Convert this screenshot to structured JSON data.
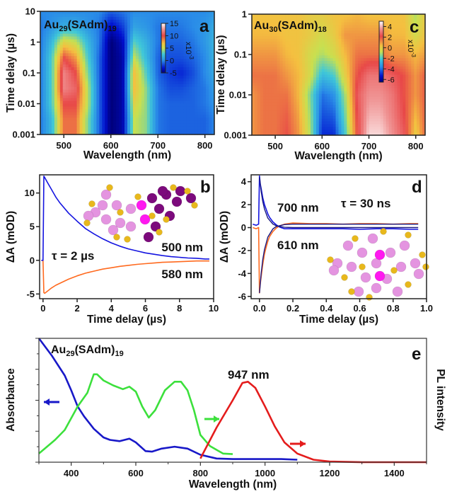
{
  "colors": {
    "blue": "#1414e0",
    "orange": "#ff6a1f",
    "red_text": "#e01f1f",
    "fit": "#1a1a80",
    "abs_blue": "#1818c8",
    "green": "#3ce03c",
    "pl_red": "#e41c1c"
  },
  "chart_data": [
    {
      "panel": "a",
      "type": "heatmap",
      "formula": [
        {
          "t": "Au"
        },
        {
          "t": "29",
          "sub": true
        },
        {
          "t": "(SAdm)"
        },
        {
          "t": "19",
          "sub": true
        }
      ],
      "xlabel": "Wavelength (nm)",
      "ylabel": "Time delay (µs)",
      "xlim": [
        450,
        820
      ],
      "ylim": [
        0.001,
        10
      ],
      "yscale": "log",
      "xticks": [
        500,
        600,
        700,
        800
      ],
      "xtick_labels": [
        "500",
        "600",
        "700",
        "800"
      ],
      "yticks": [
        10,
        1,
        0.1,
        0.01,
        0.001
      ],
      "ytick_labels": [
        "10",
        "1",
        "0.1",
        "0.01",
        "0.001"
      ],
      "colorbar": {
        "ticks": [
          15,
          10,
          5,
          0,
          -5
        ],
        "tick_labels": [
          "15",
          "10",
          "5",
          "0",
          "-5"
        ],
        "range": [
          -5,
          15
        ],
        "unit": "x10",
        "unit_exp": "-3"
      },
      "wavelengths": [
        450,
        475,
        500,
        525,
        550,
        575,
        600,
        625,
        650,
        675,
        700,
        725,
        750,
        775,
        800,
        825
      ],
      "times": [
        0.001,
        0.003,
        0.01,
        0.03,
        0.1,
        0.3,
        1,
        3,
        10
      ],
      "values": [
        [
          -0.5,
          2,
          9,
          9,
          4,
          -1,
          -5,
          -4,
          5,
          4,
          -0.5,
          -1,
          -1,
          -1,
          -1,
          0
        ],
        [
          -0.5,
          2,
          9,
          9,
          4,
          -1,
          -5,
          -4,
          5,
          4,
          -0.5,
          -1,
          -1,
          -1,
          -1,
          0
        ],
        [
          -0.5,
          3,
          10,
          10,
          5,
          -1,
          -5,
          -4,
          6,
          4,
          -0.5,
          -1,
          -1,
          -1,
          -0.5,
          0.5
        ],
        [
          -0.5,
          3,
          12,
          11,
          5,
          -1,
          -5,
          -4,
          7,
          4,
          -0.5,
          -1.5,
          -1.5,
          -1,
          -0.5,
          1
        ],
        [
          -0.5,
          3,
          12,
          10,
          4,
          -1,
          -5,
          -4,
          7,
          3,
          -1,
          -2,
          -2.5,
          -1.5,
          0,
          1.5
        ],
        [
          -0.5,
          3,
          10,
          8,
          3,
          -1,
          -5,
          -4,
          5,
          2,
          -1,
          -1.5,
          -1.5,
          -1,
          0,
          2
        ],
        [
          -0.5,
          2,
          6,
          5,
          2,
          -0.5,
          -5,
          -3.5,
          3,
          1.5,
          -0.5,
          -1,
          -1,
          -0.5,
          0.5,
          2
        ],
        [
          -0.5,
          0.5,
          1.5,
          1.5,
          0.5,
          -0.5,
          -3.5,
          -2,
          1,
          0.5,
          -0.5,
          -0.5,
          -0.5,
          0,
          0.5,
          1.5
        ],
        [
          0,
          0,
          0,
          0,
          0,
          0,
          -1,
          -0.5,
          0,
          0,
          0,
          0,
          0,
          0,
          0,
          0.5
        ]
      ]
    },
    {
      "panel": "b",
      "type": "line",
      "xlabel": "Time delay (µs)",
      "ylabel": "ΔA (mOD)",
      "xlim": [
        -0.2,
        10
      ],
      "ylim": [
        -5.7,
        12.7
      ],
      "xticks": [
        0,
        2,
        4,
        6,
        8,
        10
      ],
      "xtick_labels": [
        "0",
        "2",
        "4",
        "6",
        "8",
        "10"
      ],
      "yticks": [
        10,
        5,
        0,
        -5
      ],
      "ytick_labels": [
        "10",
        "5",
        "0",
        "-5"
      ],
      "annotations": {
        "tau": "τ = 2 µs",
        "label_500": "500 nm",
        "label_580": "580 nm"
      },
      "x": [
        -0.1,
        0,
        0.05,
        0.1,
        0.25,
        0.5,
        0.75,
        1,
        1.5,
        2,
        2.5,
        3,
        3.5,
        4,
        4.5,
        5,
        5.5,
        6,
        6.5,
        7,
        7.5,
        8,
        8.5,
        9,
        9.5,
        9.75
      ],
      "series": [
        {
          "wavelength": "500 nm",
          "color": "#1414e0",
          "values": [
            0,
            0,
            12.5,
            12.3,
            11.6,
            10.5,
            9.4,
            8.5,
            7.0,
            5.8,
            4.7,
            3.9,
            3.2,
            2.6,
            2.1,
            1.7,
            1.4,
            1.1,
            0.9,
            0.7,
            0.55,
            0.45,
            0.35,
            0.3,
            0.2,
            0.2
          ]
        },
        {
          "wavelength": "580 nm",
          "color": "#ff6a1f",
          "values": [
            0,
            0,
            -4.8,
            -4.9,
            -4.6,
            -4.1,
            -3.7,
            -3.4,
            -2.8,
            -2.3,
            -1.9,
            -1.6,
            -1.3,
            -1.1,
            -0.9,
            -0.75,
            -0.6,
            -0.5,
            -0.4,
            -0.3,
            -0.25,
            -0.2,
            -0.15,
            -0.1,
            -0.1,
            -0.1
          ]
        }
      ]
    },
    {
      "panel": "c",
      "type": "heatmap",
      "formula": [
        {
          "t": "Au"
        },
        {
          "t": "30",
          "sub": true
        },
        {
          "t": "(SAdm)"
        },
        {
          "t": "18",
          "sub": true
        }
      ],
      "xlabel": "Wavelength (nm)",
      "ylabel": "Time delay (µs)",
      "xlim": [
        450,
        820
      ],
      "ylim": [
        0.001,
        1
      ],
      "yscale": "log",
      "xticks": [
        500,
        600,
        700,
        800
      ],
      "xtick_labels": [
        "500",
        "600",
        "700",
        "800"
      ],
      "yticks": [
        1,
        0.1,
        0.01,
        0.001
      ],
      "ytick_labels": [
        "1",
        "0.1",
        "0.01",
        "0.001"
      ],
      "colorbar": {
        "ticks": [
          4,
          2,
          0,
          -2,
          -4,
          -6
        ],
        "tick_labels": [
          "4",
          "2",
          "0",
          "-2",
          "-4",
          "-6"
        ],
        "range": [
          -6.5,
          5
        ],
        "unit": "x10",
        "unit_exp": "-3"
      },
      "wavelengths": [
        450,
        475,
        500,
        525,
        550,
        575,
        600,
        625,
        650,
        675,
        700,
        725,
        750,
        775,
        800,
        825
      ],
      "times": [
        0.001,
        0.003,
        0.01,
        0.03,
        0.1,
        0.3,
        1
      ],
      "values": [
        [
          1,
          1.5,
          1.5,
          2,
          1,
          -1,
          -5,
          -5,
          -2,
          2,
          4.5,
          4.5,
          3.5,
          2.5,
          0,
          2
        ],
        [
          1,
          1.5,
          1.5,
          1.8,
          0.8,
          -1.2,
          -4.5,
          -4.3,
          -1.5,
          2.2,
          4,
          4,
          3.2,
          2.2,
          0.5,
          2
        ],
        [
          1,
          1.5,
          1.5,
          1.5,
          0.5,
          -1.5,
          -4,
          -3.5,
          -1,
          2.5,
          3.5,
          3.5,
          3,
          2,
          1,
          2
        ],
        [
          1.5,
          1.5,
          1.5,
          1,
          0.5,
          -0.5,
          -2.5,
          -2,
          0,
          2,
          3,
          3,
          2.5,
          2,
          1,
          2
        ],
        [
          1,
          1,
          1,
          0.5,
          0.3,
          -0.5,
          -1,
          -0.5,
          0.5,
          1.5,
          1.5,
          1.5,
          1,
          1,
          0.5,
          1
        ],
        [
          0.5,
          0.5,
          0.5,
          0.3,
          0.3,
          0,
          -0.5,
          0,
          1,
          1,
          1,
          1,
          0.5,
          0.5,
          -0.5,
          0.5
        ],
        [
          0.3,
          0.3,
          0.3,
          0.3,
          0.3,
          0,
          0,
          0.3,
          0.3,
          0.5,
          0.3,
          0.3,
          0.3,
          0.3,
          -1,
          0.3
        ]
      ]
    },
    {
      "panel": "d",
      "type": "line",
      "xlabel": "Time delay (µs)",
      "ylabel": "ΔA (mOD)",
      "xlim": [
        -0.05,
        1.0
      ],
      "ylim": [
        -6.2,
        4.6
      ],
      "xticks": [
        0,
        0.2,
        0.4,
        0.6,
        0.8,
        1.0
      ],
      "xtick_labels": [
        "0.0",
        "0.2",
        "0.4",
        "0.6",
        "0.8",
        "1.0"
      ],
      "yticks": [
        4,
        2,
        0,
        -2,
        -4,
        -6
      ],
      "ytick_labels": [
        "4",
        "2",
        "0",
        "-2",
        "-4",
        "-6"
      ],
      "annotations": {
        "tau": "τ = 30 ns",
        "label_700": "700 nm",
        "label_610": "610 nm"
      },
      "x": [
        -0.04,
        -0.02,
        -0.005,
        0,
        0.005,
        0.01,
        0.02,
        0.03,
        0.04,
        0.05,
        0.06,
        0.08,
        0.1,
        0.12,
        0.15,
        0.2,
        0.3,
        0.4,
        0.5,
        0.6,
        0.7,
        0.8,
        0.9,
        0.95
      ],
      "series": [
        {
          "wavelength": "610 nm",
          "color": "#ff6a1f",
          "values": [
            0,
            -0.1,
            0,
            -5.7,
            -4.9,
            -4.3,
            -3.2,
            -2.3,
            -1.7,
            -1.2,
            -0.8,
            -0.35,
            -0.05,
            0.15,
            0.3,
            0.4,
            0.35,
            0.35,
            0.3,
            0.35,
            0.35,
            0.3,
            0.35,
            0.35
          ]
        },
        {
          "wavelength": "700 nm",
          "color": "#1414e0",
          "values": [
            0.3,
            0.2,
            0.3,
            4.5,
            3.8,
            3.4,
            2.6,
            2.0,
            1.6,
            1.2,
            0.9,
            0.5,
            0.25,
            0.05,
            -0.1,
            -0.1,
            -0.1,
            -0.1,
            -0.1,
            -0.15,
            -0.1,
            -0.1,
            -0.15,
            -0.15
          ]
        }
      ],
      "fits": {
        "x": [
          0,
          0.01,
          0.02,
          0.03,
          0.05,
          0.08,
          0.1,
          0.15,
          0.2,
          0.3,
          0.5,
          0.95
        ],
        "series": [
          {
            "wavelength": "700 nm",
            "values": [
              4.4,
              3.15,
              2.26,
              1.62,
              0.83,
              0.31,
              0.16,
              0.03,
              0,
              0,
              0,
              0
            ]
          },
          {
            "wavelength": "610 nm",
            "values": [
              -5.7,
              -4.0,
              -2.78,
              -1.91,
              -0.83,
              -0.12,
              0.09,
              0.26,
              0.3,
              0.3,
              0.3,
              0.3
            ]
          }
        ]
      }
    },
    {
      "panel": "e",
      "type": "line",
      "formula": [
        {
          "t": "Au"
        },
        {
          "t": "29",
          "sub": true
        },
        {
          "t": "(SAdm)"
        },
        {
          "t": "19",
          "sub": true
        }
      ],
      "xlabel": "Wavelength (nm)",
      "ylabel_left": "Absorbance",
      "ylabel_right": "PL intensity",
      "xlim": [
        300,
        1500
      ],
      "ylim": [
        0,
        1
      ],
      "xticks": [
        400,
        600,
        800,
        1000,
        1200,
        1400
      ],
      "xtick_labels": [
        "400",
        "600",
        "800",
        "1000",
        "1200",
        "1400"
      ],
      "xminor": [
        300,
        500,
        700,
        900,
        1100,
        1300,
        1500
      ],
      "annotations": {
        "peak": "947 nm"
      },
      "series": [
        {
          "role": "absorbance",
          "axis": "left",
          "color": "#1818c8",
          "x": [
            300,
            340,
            380,
            400,
            420,
            440,
            470,
            500,
            520,
            550,
            580,
            600,
            630,
            650,
            680,
            720,
            760,
            800,
            850,
            900,
            1000,
            1050,
            1100
          ],
          "values": [
            1.0,
            0.86,
            0.7,
            0.58,
            0.45,
            0.37,
            0.27,
            0.2,
            0.18,
            0.17,
            0.19,
            0.16,
            0.09,
            0.085,
            0.11,
            0.125,
            0.11,
            0.06,
            0.03,
            0.025,
            0.025,
            0.025,
            0.02
          ]
        },
        {
          "role": "excitation",
          "axis": "right",
          "color": "#3ce03c",
          "x": [
            300,
            350,
            380,
            420,
            450,
            470,
            480,
            500,
            530,
            560,
            580,
            600,
            620,
            640,
            660,
            690,
            720,
            740,
            760,
            780,
            800,
            830,
            870,
            900
          ],
          "values": [
            0.07,
            0.18,
            0.26,
            0.45,
            0.56,
            0.71,
            0.71,
            0.66,
            0.62,
            0.59,
            0.61,
            0.57,
            0.45,
            0.36,
            0.42,
            0.58,
            0.65,
            0.65,
            0.58,
            0.42,
            0.22,
            0.13,
            0.07,
            0.065
          ]
        },
        {
          "role": "photoluminescence",
          "axis": "right",
          "color": "#e41c1c",
          "x": [
            800,
            850,
            900,
            930,
            947,
            970,
            1000,
            1030,
            1060,
            1100,
            1150,
            1200,
            1300,
            1500
          ],
          "values": [
            0.03,
            0.28,
            0.5,
            0.64,
            0.65,
            0.6,
            0.45,
            0.29,
            0.16,
            0.07,
            0.02,
            0.005,
            0,
            0
          ]
        }
      ]
    }
  ]
}
